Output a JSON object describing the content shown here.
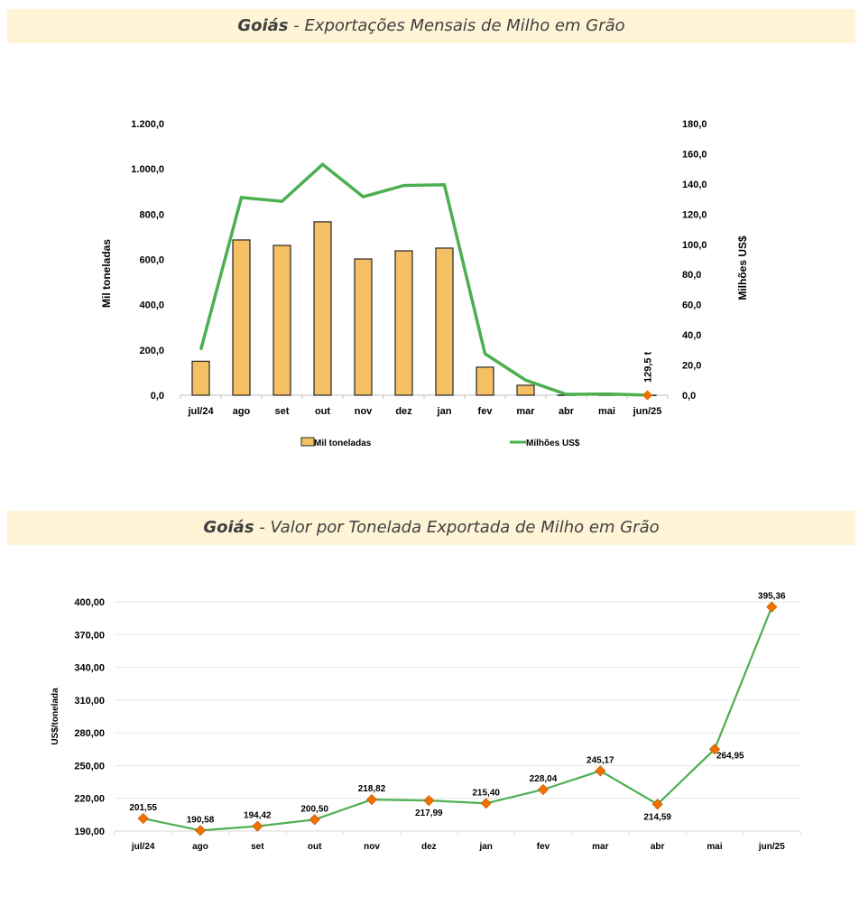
{
  "banners": [
    {
      "state": "Goiás",
      "separator": " - ",
      "title": "Exportações Mensais de Milho em Grão"
    },
    {
      "state": "Goiás",
      "separator": " - ",
      "title": "Valor por Tonelada Exportada de Milho em Grão"
    }
  ],
  "colors": {
    "bar_fill": "#f5bf63",
    "bar_stroke": "#262626",
    "line": "#4caf50",
    "marker": "#f07000",
    "banner_bg": "#fff4d6",
    "grid": "#e6e6e6"
  },
  "chart_data": [
    {
      "type": "bar+line",
      "title": "Goiás - Exportações Mensais de Milho em Grão",
      "categories": [
        "jul/24",
        "ago",
        "set",
        "out",
        "nov",
        "dez",
        "jan",
        "fev",
        "mar",
        "abr",
        "mai",
        "jun/25"
      ],
      "series": [
        {
          "name": "Mil toneladas",
          "type": "bar",
          "axis": "left",
          "values": [
            150.0,
            686.0,
            662.0,
            766.0,
            602.0,
            638.0,
            650.0,
            124.0,
            44.0,
            0.5,
            0.5,
            0.13
          ]
        },
        {
          "name": "Milhões US$",
          "type": "line",
          "axis": "right",
          "values": [
            30.0,
            131.0,
            128.5,
            153.0,
            131.5,
            139.0,
            139.5,
            27.5,
            10.0,
            0.6,
            0.8,
            0.05
          ]
        }
      ],
      "ylabel": "Mil toneladas",
      "y2label": "Milhões US$",
      "ylim": [
        0,
        1200
      ],
      "y2lim": [
        0,
        180
      ],
      "yticks": [
        "0,0",
        "200,0",
        "400,0",
        "600,0",
        "800,0",
        "1.000,0",
        "1.200,0"
      ],
      "y2ticks": [
        "0,0",
        "20,0",
        "40,0",
        "60,0",
        "80,0",
        "100,0",
        "120,0",
        "140,0",
        "160,0",
        "180,0"
      ],
      "annotation": {
        "category": "jun/25",
        "text": "129,5 t"
      },
      "legend": [
        "Mil toneladas",
        "Milhões US$"
      ],
      "legend_position": "bottom",
      "grid": false
    },
    {
      "type": "line",
      "title": "Goiás - Valor por Tonelada Exportada de Milho em Grão",
      "categories": [
        "jul/24",
        "ago",
        "set",
        "out",
        "nov",
        "dez",
        "jan",
        "fev",
        "mar",
        "abr",
        "mai",
        "jun/25"
      ],
      "values": [
        201.55,
        190.58,
        194.42,
        200.5,
        218.82,
        217.99,
        215.4,
        228.04,
        245.17,
        214.59,
        264.95,
        395.36
      ],
      "labels": [
        "201,55",
        "190,58",
        "194,42",
        "200,50",
        "218,82",
        "217,99",
        "215,40",
        "228,04",
        "245,17",
        "214,59",
        "264,95",
        "395,36"
      ],
      "label_positions": [
        "above",
        "above",
        "above",
        "above",
        "above",
        "below",
        "above",
        "above",
        "above",
        "below",
        "right",
        "above"
      ],
      "ylabel": "US$/tonelada",
      "ylim": [
        190,
        400
      ],
      "yticks": [
        "190,00",
        "220,00",
        "250,00",
        "280,00",
        "310,00",
        "340,00",
        "370,00",
        "400,00"
      ],
      "grid": true
    }
  ]
}
